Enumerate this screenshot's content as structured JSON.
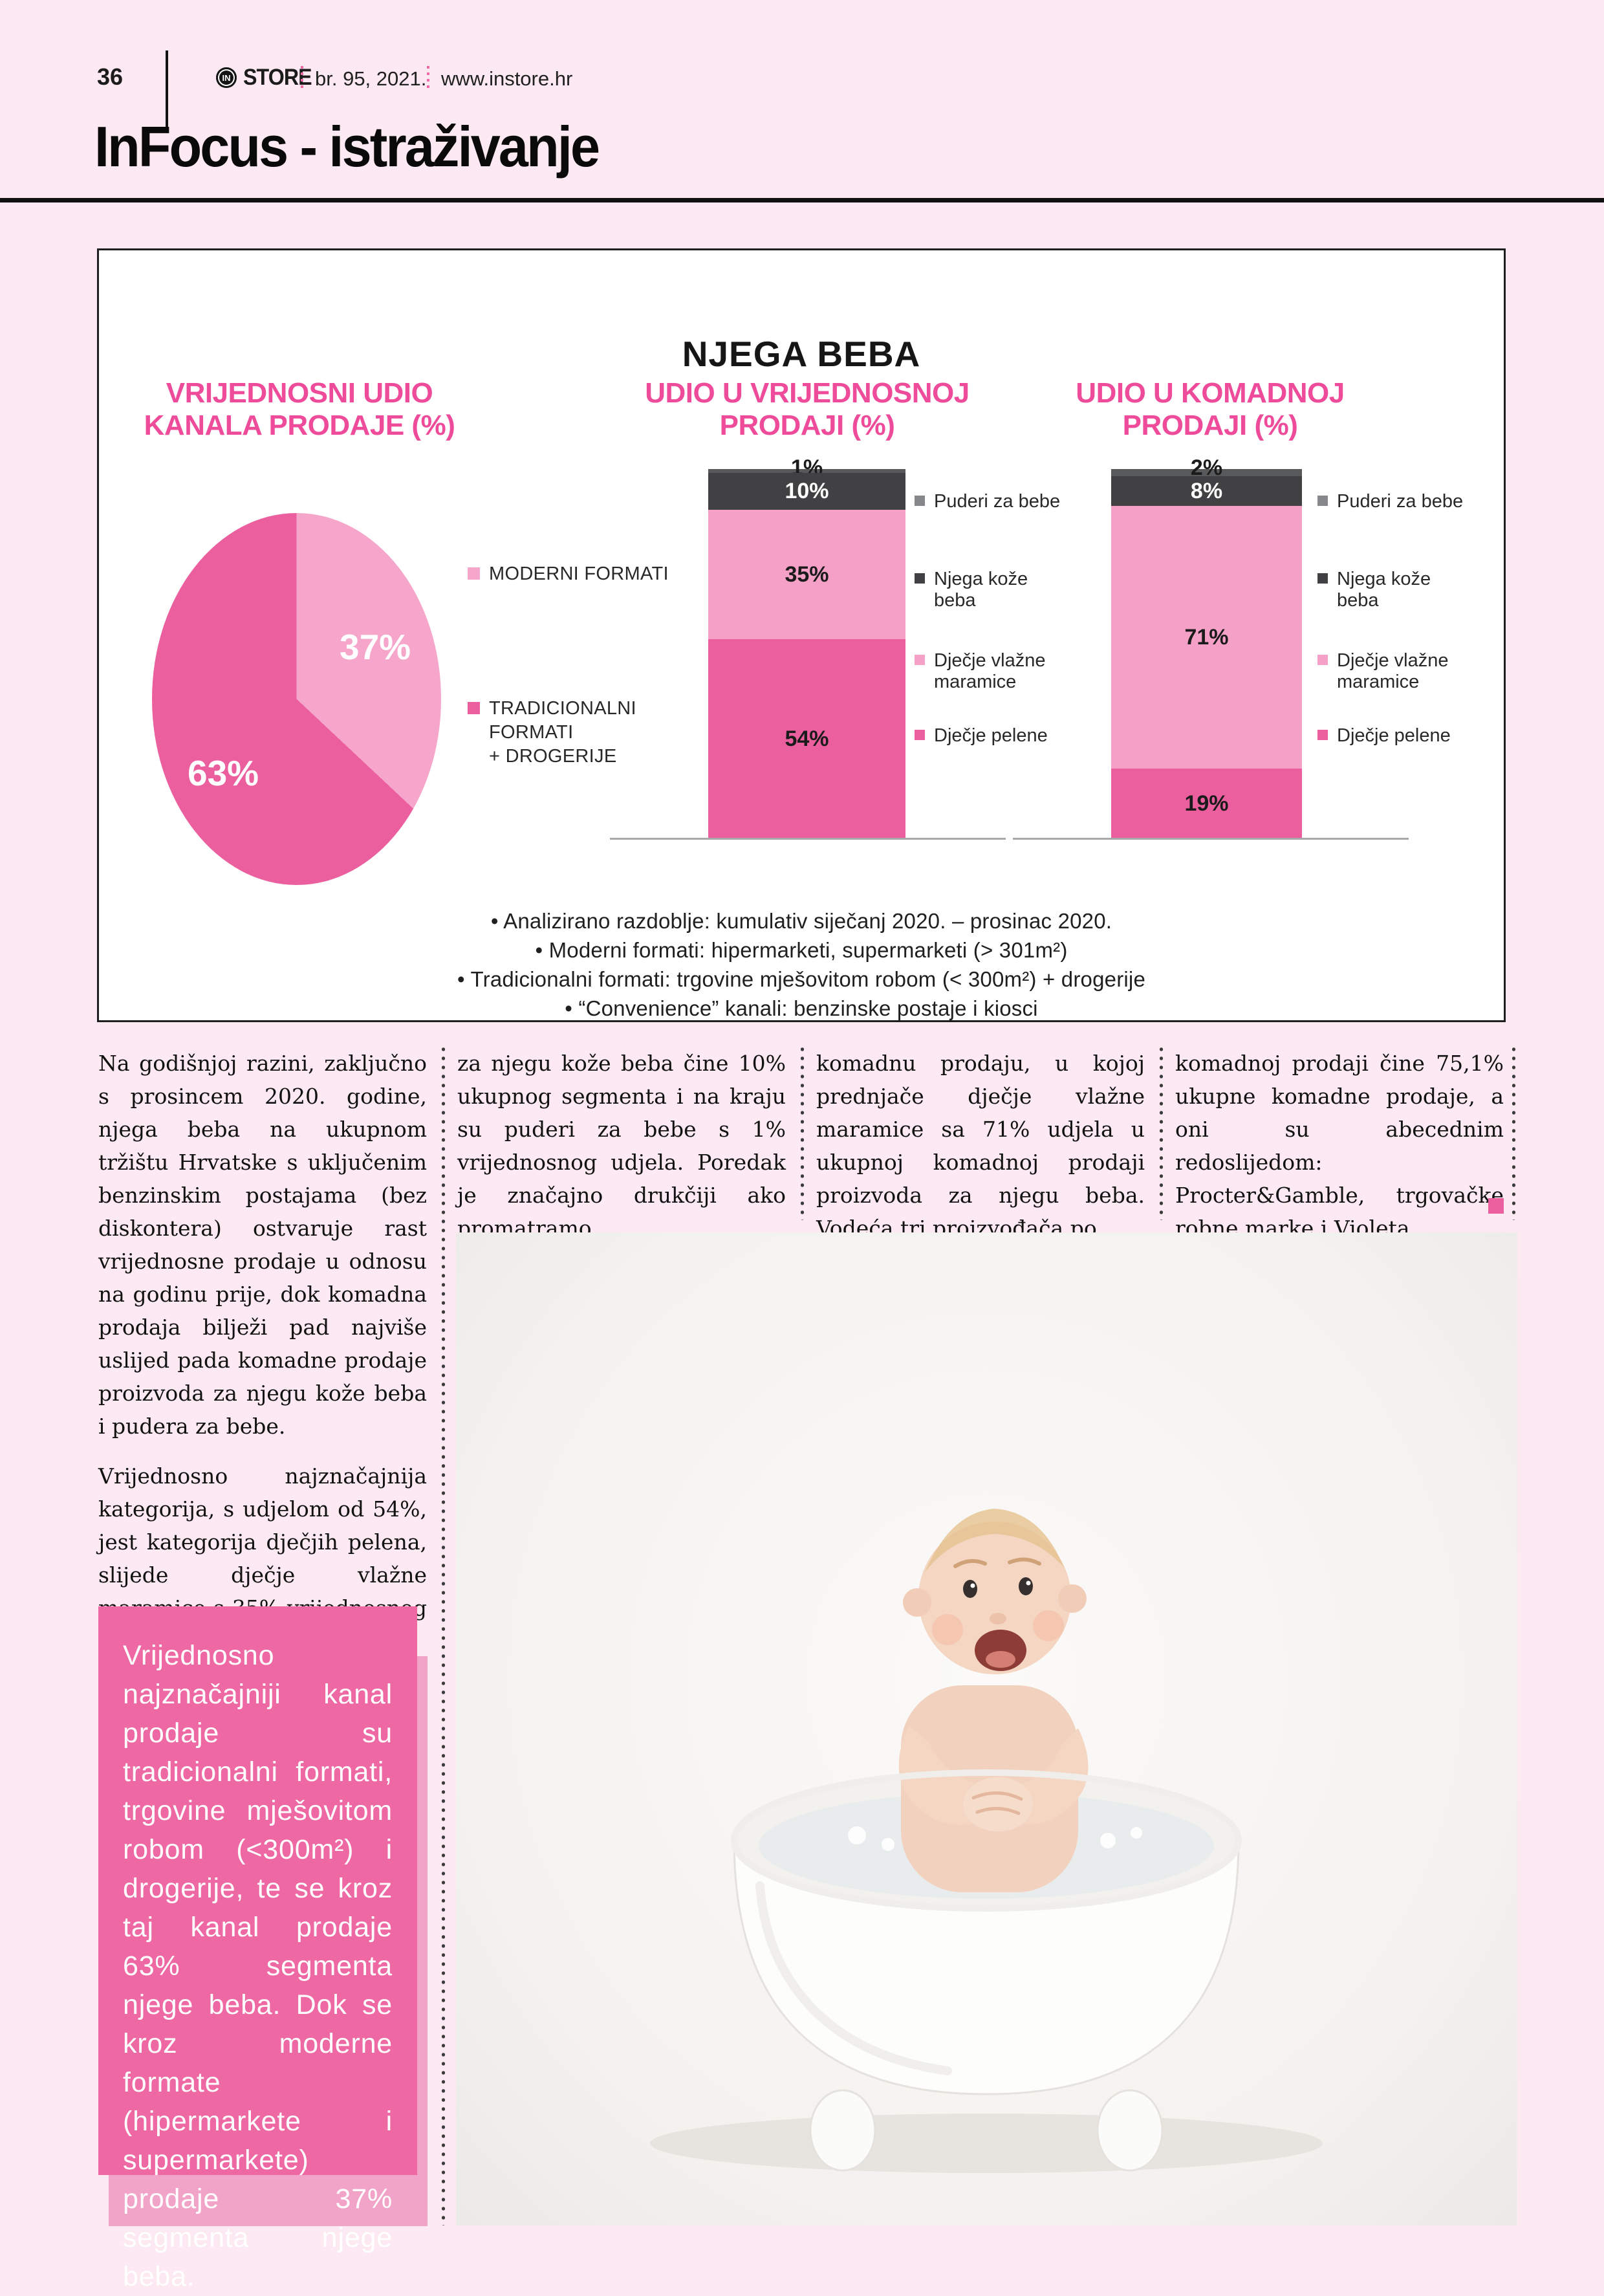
{
  "page": {
    "number": "36",
    "brand_badge": "IN",
    "brand": "STORE",
    "issue": "br. 95, 2021.",
    "site": "www.instore.hr",
    "section_title": "InFocus - istraživanje"
  },
  "chart": {
    "title": "NJEGA BEBA",
    "panels": [
      {
        "title_line1": "VRIJEDNOSNI UDIO",
        "title_line2": "KANALA PRODAJE (%)"
      },
      {
        "title_line1": "UDIO U VRIJEDNOSNOJ",
        "title_line2": "PRODAJI (%)"
      },
      {
        "title_line1": "UDIO U KOMADNOJ",
        "title_line2": "PRODAJI (%)"
      }
    ],
    "notes": [
      "•   Analizirano razdoblje: kumulativ siječanj 2020. – prosinac 2020.",
      "•   Moderni formati: hipermarketi, supermarketi (> 301m²)",
      "•   Tradicionalni formati: trgovine mješovitom robom (< 300m²) + drogerije",
      "•   “Convenience” kanali: benzinske postaje i kiosci"
    ]
  },
  "chart_data": [
    {
      "type": "pie",
      "title": "VRIJEDNOSNI UDIO KANALA PRODAJE (%)",
      "series": [
        {
          "name": "MODERNI FORMATI",
          "value": 37,
          "color": "#f5a6ca"
        },
        {
          "name": "TRADICIONALNI FORMATI + DROGERIJE",
          "value": 63,
          "color": "#ec5f9e"
        }
      ],
      "legend": [
        {
          "lines": [
            "MODERNI FORMATI"
          ],
          "color": "#f5a6ca"
        },
        {
          "lines": [
            "TRADICIONALNI",
            "FORMATI",
            "+ DROGERIJE"
          ],
          "color": "#ec5f9e"
        }
      ]
    },
    {
      "type": "bar",
      "stacked": true,
      "title": "UDIO U VRIJEDNOSNOJ PRODAJI (%)",
      "segments_top_to_bottom": [
        {
          "label": "Puderi za bebe",
          "value": 1,
          "color": "#58595b",
          "label_style": "outside"
        },
        {
          "label": "Njega kože beba",
          "value": 10,
          "color": "#414042",
          "label_style": "light"
        },
        {
          "label": "Dječje vlažne maramice",
          "value": 35,
          "color": "#f5a0c6",
          "label_style": "dark"
        },
        {
          "label": "Dječje pelene",
          "value": 54,
          "color": "#ec5f9e",
          "label_style": "dark"
        }
      ]
    },
    {
      "type": "bar",
      "stacked": true,
      "title": "UDIO U KOMADNOJ PRODAJI (%)",
      "segments_top_to_bottom": [
        {
          "label": "Puderi za bebe",
          "value": 2,
          "color": "#58595b",
          "label_style": "outside"
        },
        {
          "label": "Njega kože beba",
          "value": 8,
          "color": "#414042",
          "label_style": "light"
        },
        {
          "label": "Dječje vlažne maramice",
          "value": 71,
          "color": "#f5a0c6",
          "label_style": "dark"
        },
        {
          "label": "Dječje pelene",
          "value": 19,
          "color": "#ec5f9e",
          "label_style": "dark"
        }
      ]
    }
  ],
  "bar_legend": {
    "items": [
      {
        "lines": [
          "Puderi za bebe"
        ],
        "color": "#85878a"
      },
      {
        "lines": [
          "Njega kože",
          "beba"
        ],
        "color": "#414042"
      },
      {
        "lines": [
          "Dječje vlažne",
          "maramice"
        ],
        "color": "#f5a0c6"
      },
      {
        "lines": [
          "Dječje pelene"
        ],
        "color": "#ec5f9e"
      }
    ],
    "item_offsets": [
      0,
      120,
      246,
      362
    ]
  },
  "article": {
    "columns": [
      {
        "p1": "Na godišnjoj razini, zaključno s prosincem 2020. godine, njega beba na ukupnom tržištu Hrvatske s uključenim benzinskim postajama (bez diskontera) ostvaruje rast vrijednosne prodaje u odnosu na godinu prije, dok komadna prodaja bilježi pad najviše uslijed pada komadne prodaje proizvoda za njegu kože beba i pudera za bebe.",
        "p2": "Vrijednosno najznačajnija kategorija, s udjelom od 54%, jest kategorija dječjih pelena, slijede dječje vlažne maramice s 35% vrijednosnog udjela, proizvodi"
      },
      {
        "p1": "za njegu kože beba čine 10% ukupnog segmenta i na kraju su puderi za bebe s 1% vrijednosnog udjela. Poredak je značajno drukčiji ako promatramo"
      },
      {
        "p1": "komadnu prodaju, u kojoj prednjače dječje vlažne maramice sa 71% udjela u ukupnoj komadnoj prodaji proizvoda za njegu beba. Vodeća tri proizvođača po"
      },
      {
        "p1": "komadnoj prodaji čine 75,1% ukupne komadne prodaje, a oni su abecednim redoslijedom: Procter&Gamble, trgovačke robne marke i Violeta."
      }
    ]
  },
  "callout": {
    "text": "Vrijednosno najznačajniji kanal prodaje su tradicionalni formati, trgovine mješovitom robom (<300m²) i drogerije, te se kroz taj kanal prodaje 63% segmenta njege beba. Dok se kroz moderne formate (hipermarkete i supermarkete) prodaje 37% segmenta njege beba."
  },
  "colors": {
    "page_bg": "#fce9f2",
    "accent": "#ec5f9e",
    "accent_light": "#f5a6ca",
    "header_pink": "#ee4c9b",
    "charcoal": "#414042",
    "callout_bg": "#ee68a3",
    "callout_shadow": "#f2a3c8"
  }
}
